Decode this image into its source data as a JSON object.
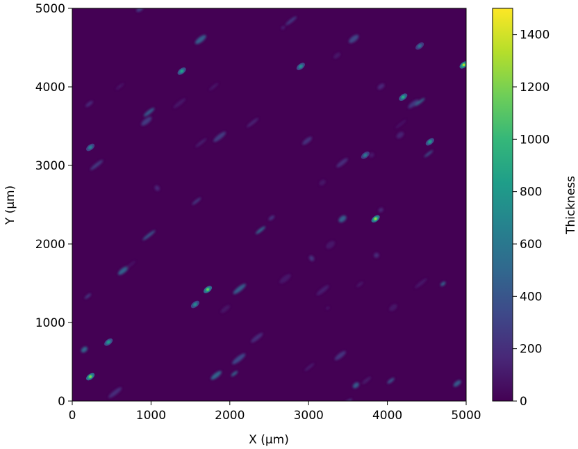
{
  "chart_data": {
    "type": "heatmap",
    "xlabel": "X (µm)",
    "ylabel": "Y (µm)",
    "colorbar_label": "Thickness",
    "xlim": [
      0,
      5000
    ],
    "ylim": [
      0,
      5000
    ],
    "xticks": [
      0,
      1000,
      2000,
      3000,
      4000,
      5000
    ],
    "yticks": [
      0,
      1000,
      2000,
      3000,
      4000,
      5000
    ],
    "colorbar_range": [
      0,
      1500
    ],
    "colorbar_ticks": [
      0,
      200,
      400,
      600,
      800,
      1000,
      1200,
      1400
    ],
    "colormap": "viridis",
    "colormap_stops": [
      "#440154",
      "#482878",
      "#3e4989",
      "#31688e",
      "#26828e",
      "#1f9e89",
      "#35b779",
      "#6ece58",
      "#b5de2b",
      "#fde725"
    ],
    "background_value": 0,
    "grid": false,
    "pattern": "sparse elongated deposits aligned in diagonal bands rising left to right",
    "notable_peaks": [
      {
        "x": 230,
        "y": 310,
        "value": 1200
      },
      {
        "x": 1720,
        "y": 1420,
        "value": 1150
      },
      {
        "x": 3850,
        "y": 2320,
        "value": 1250
      },
      {
        "x": 4970,
        "y": 4280,
        "value": 1300
      },
      {
        "x": 4200,
        "y": 3870,
        "value": 900
      },
      {
        "x": 4540,
        "y": 3300,
        "value": 800
      },
      {
        "x": 1390,
        "y": 4200,
        "value": 850
      },
      {
        "x": 2900,
        "y": 4260,
        "value": 750
      },
      {
        "x": 1560,
        "y": 1230,
        "value": 700
      },
      {
        "x": 460,
        "y": 750,
        "value": 800
      },
      {
        "x": 230,
        "y": 3230,
        "value": 650
      },
      {
        "x": 3720,
        "y": 3130,
        "value": 600
      },
      {
        "x": 4410,
        "y": 4520,
        "value": 550
      }
    ]
  }
}
